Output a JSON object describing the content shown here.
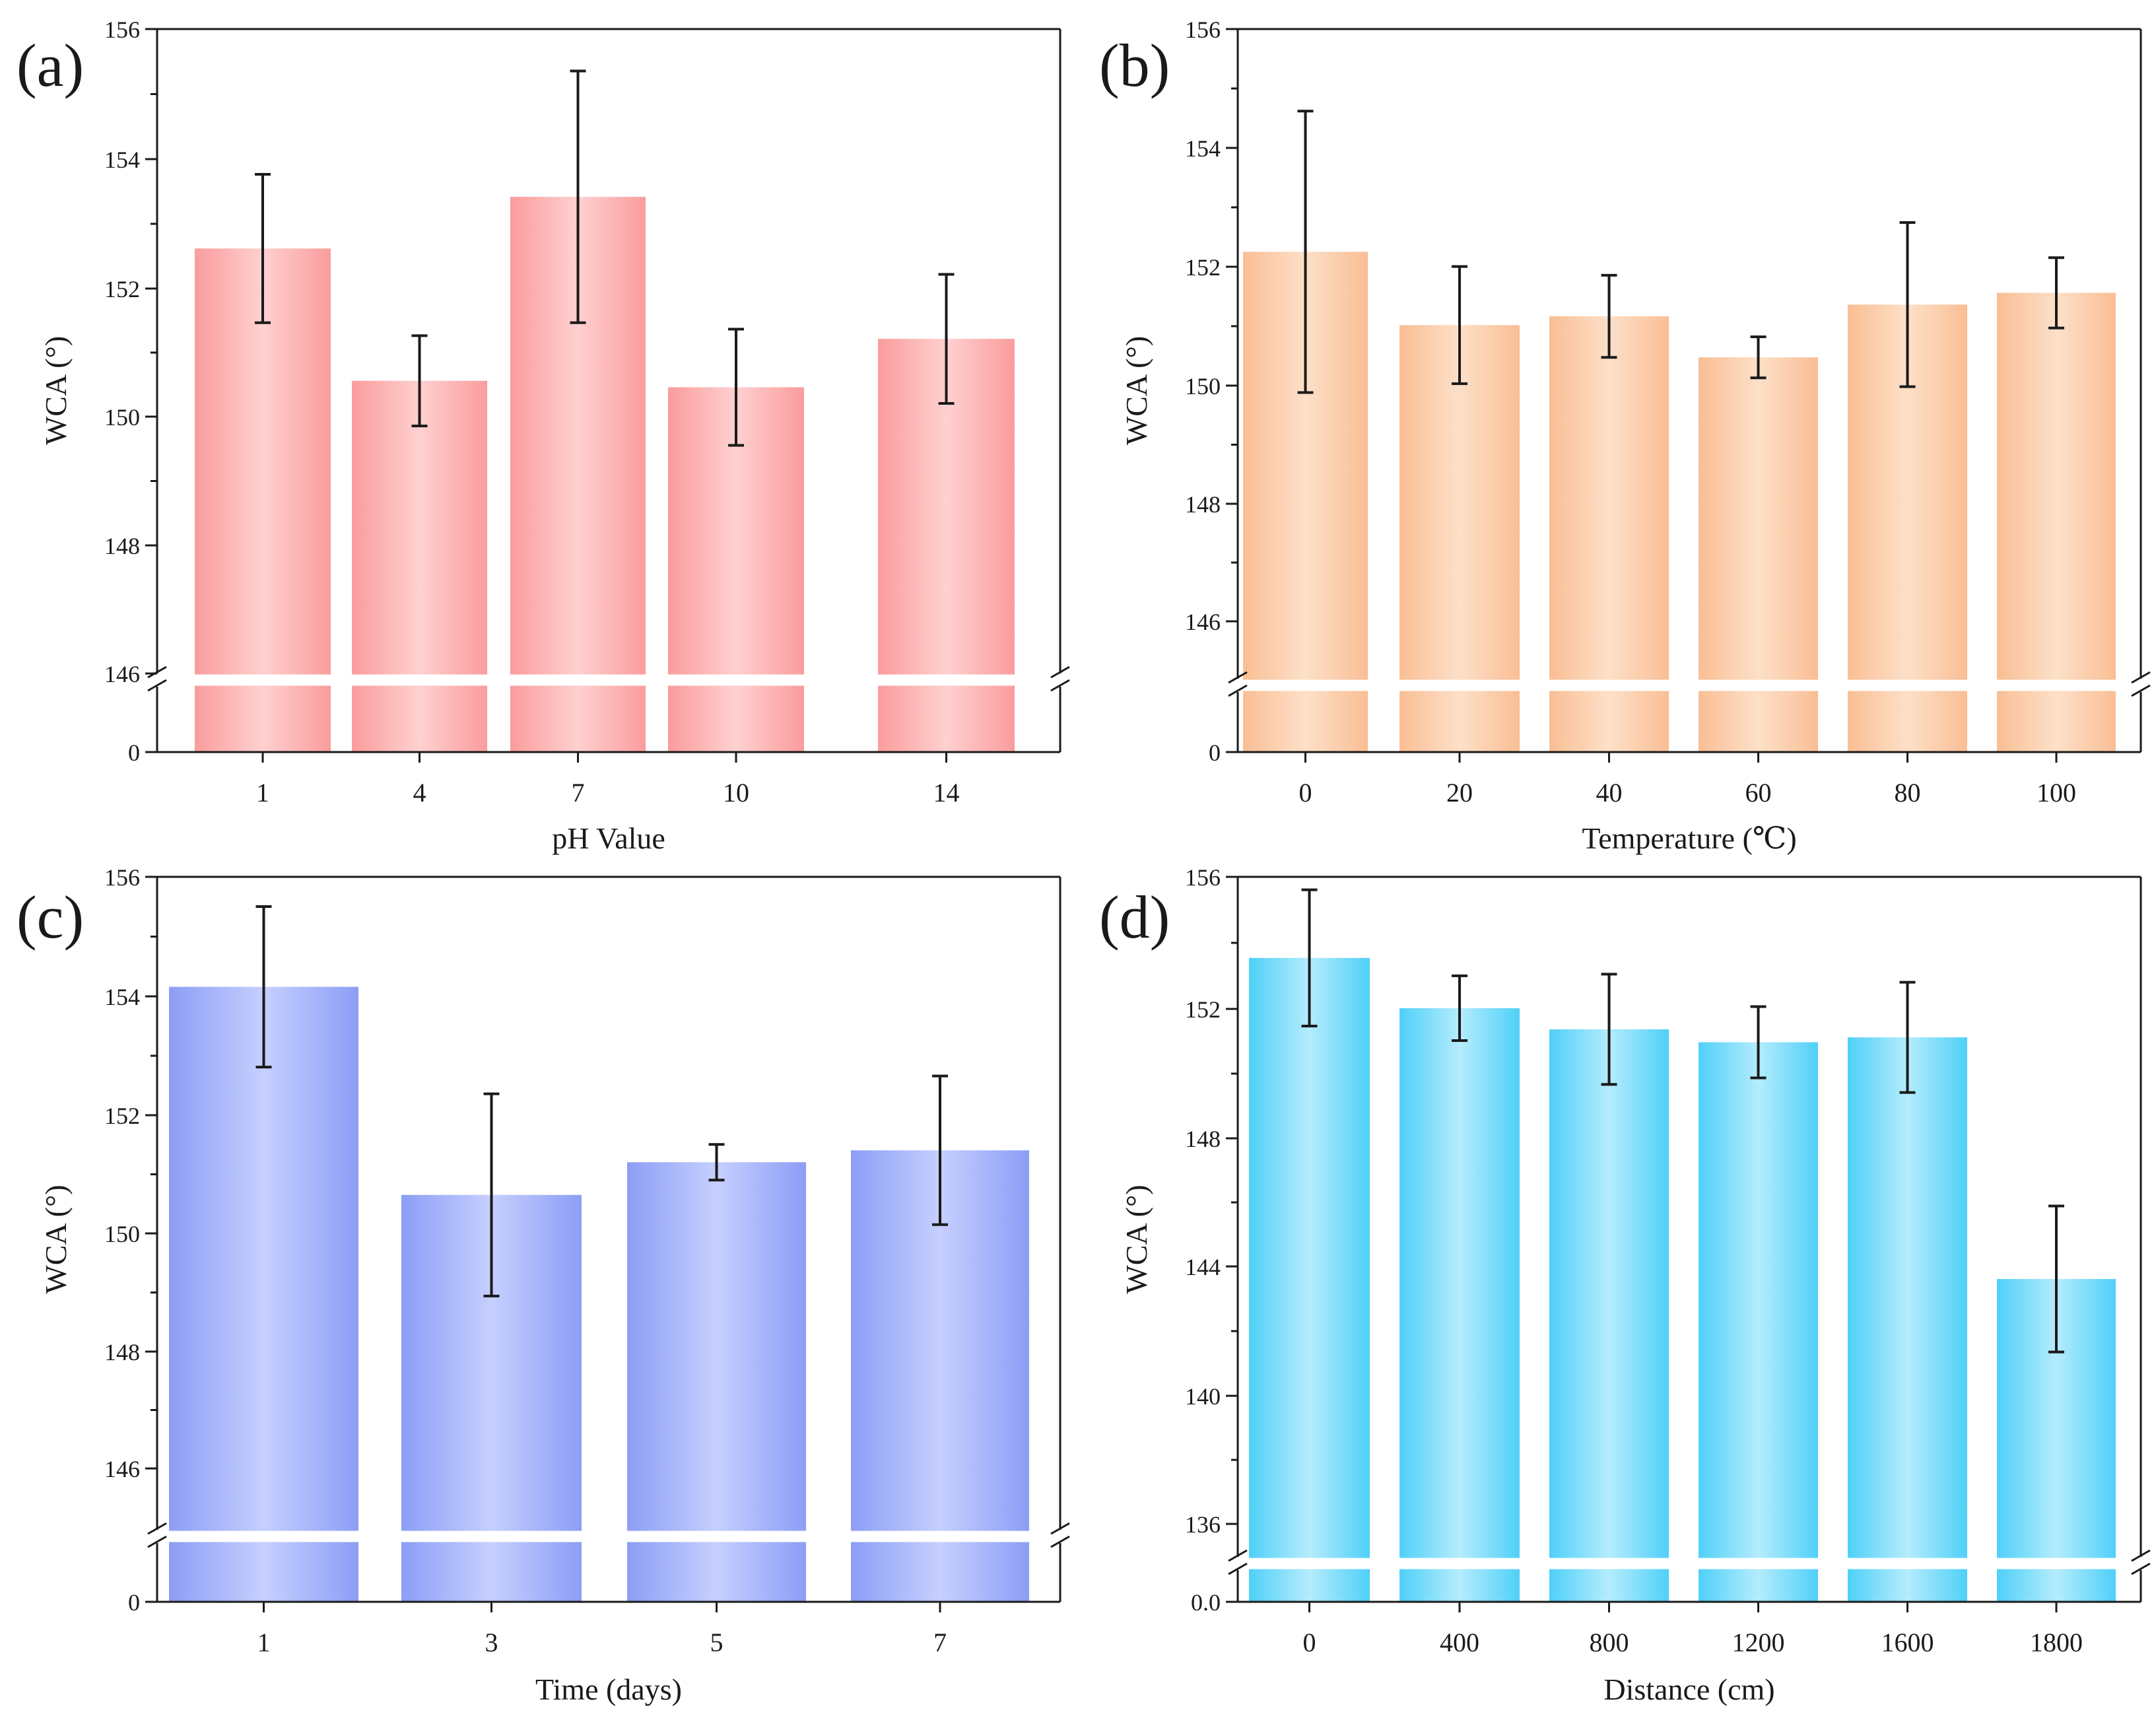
{
  "chart_data": [
    {
      "panel_label": "(a)",
      "type": "bar",
      "title": "",
      "xlabel": "pH Value",
      "ylabel": "WCA (°)",
      "categories": [
        "1",
        "4",
        "7",
        "10",
        "14"
      ],
      "values": [
        152.6,
        150.55,
        153.4,
        150.45,
        151.2
      ],
      "errors": [
        1.15,
        0.7,
        1.95,
        0.9,
        1.0
      ],
      "ylim": [
        146,
        156
      ],
      "yticks": [
        "148",
        "150",
        "152",
        "154",
        "156"
      ],
      "ytick_break": "146",
      "ytick_zero": "0",
      "axis_break": true,
      "gradient": {
        "edge": "#fa9c9c",
        "mid": "#ffd0d0"
      }
    },
    {
      "panel_label": "(b)",
      "type": "bar",
      "title": "",
      "xlabel": "Temperature (℃)",
      "ylabel": "WCA (°)",
      "categories": [
        "0",
        "20",
        "40",
        "60",
        "80",
        "100"
      ],
      "values": [
        152.2,
        150.95,
        151.1,
        150.4,
        151.3,
        151.5
      ],
      "errors": [
        2.4,
        1.0,
        0.7,
        0.35,
        1.4,
        0.6
      ],
      "ylim": [
        144.9,
        156
      ],
      "yticks": [
        "146",
        "148",
        "150",
        "152",
        "154",
        "156"
      ],
      "ytick_zero": "0",
      "axis_break": true,
      "gradient": {
        "edge": "#f9be94",
        "mid": "#fde0c8"
      }
    },
    {
      "panel_label": "(c)",
      "type": "bar",
      "title": "",
      "xlabel": "Time (days)",
      "ylabel": "WCA (°)",
      "categories": [
        "1",
        "3",
        "5",
        "7"
      ],
      "values": [
        154.15,
        150.65,
        151.2,
        151.4
      ],
      "errors": [
        1.35,
        1.7,
        0.3,
        1.25
      ],
      "ylim": [
        145,
        156
      ],
      "yticks": [
        "146",
        "148",
        "150",
        "152",
        "154",
        "156"
      ],
      "ytick_zero": "0",
      "axis_break": true,
      "gradient": {
        "edge": "#8c9ef5",
        "mid": "#c6cfff"
      }
    },
    {
      "panel_label": "(d)",
      "type": "bar",
      "title": "",
      "xlabel": "Distance (cm)",
      "ylabel": "WCA (°)",
      "categories": [
        "0",
        "400",
        "800",
        "1200",
        "1600",
        "1800"
      ],
      "values": [
        153.5,
        151.95,
        151.3,
        150.9,
        151.05,
        143.6
      ],
      "errors": [
        2.1,
        1.0,
        1.7,
        1.1,
        1.7,
        2.25
      ],
      "ylim": [
        135,
        156
      ],
      "yticks": [
        "136",
        "140",
        "144",
        "148",
        "152",
        "156"
      ],
      "ytick_zero": "0.0",
      "axis_break": true,
      "gradient": {
        "edge": "#4fd0f8",
        "mid": "#b5ecfd"
      }
    }
  ]
}
